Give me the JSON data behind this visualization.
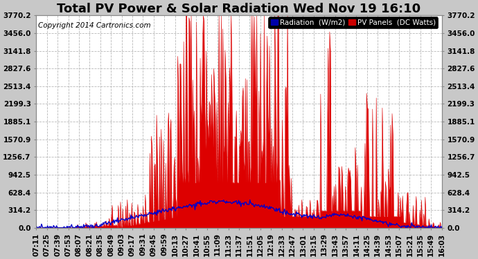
{
  "title": "Total PV Power & Solar Radiation Wed Nov 19 16:10",
  "copyright": "Copyright 2014 Cartronics.com",
  "bg_color": "#c8c8c8",
  "plot_bg_color": "#ffffff",
  "grid_color": "#b0b0b0",
  "yticks": [
    0.0,
    314.2,
    628.4,
    942.5,
    1256.7,
    1570.9,
    1885.1,
    2199.3,
    2513.4,
    2827.6,
    3141.8,
    3456.0,
    3770.2
  ],
  "ymax": 3770.2,
  "pv_fill_color": "#dd0000",
  "radiation_line_color": "#0000cc",
  "legend_radiation_bg": "#0000aa",
  "legend_pv_bg": "#cc0000",
  "title_fontsize": 13,
  "copyright_fontsize": 7.5,
  "tick_fontsize": 7.5,
  "x_labels": [
    "07:11",
    "07:25",
    "07:39",
    "07:53",
    "08:07",
    "08:21",
    "08:35",
    "08:49",
    "09:03",
    "09:17",
    "09:31",
    "09:45",
    "09:59",
    "10:13",
    "10:27",
    "10:41",
    "10:55",
    "11:09",
    "11:23",
    "11:37",
    "11:51",
    "12:05",
    "12:19",
    "12:33",
    "12:47",
    "13:01",
    "13:15",
    "13:29",
    "13:43",
    "13:57",
    "14:11",
    "14:25",
    "14:39",
    "14:53",
    "15:07",
    "15:21",
    "15:35",
    "15:49",
    "16:03"
  ]
}
